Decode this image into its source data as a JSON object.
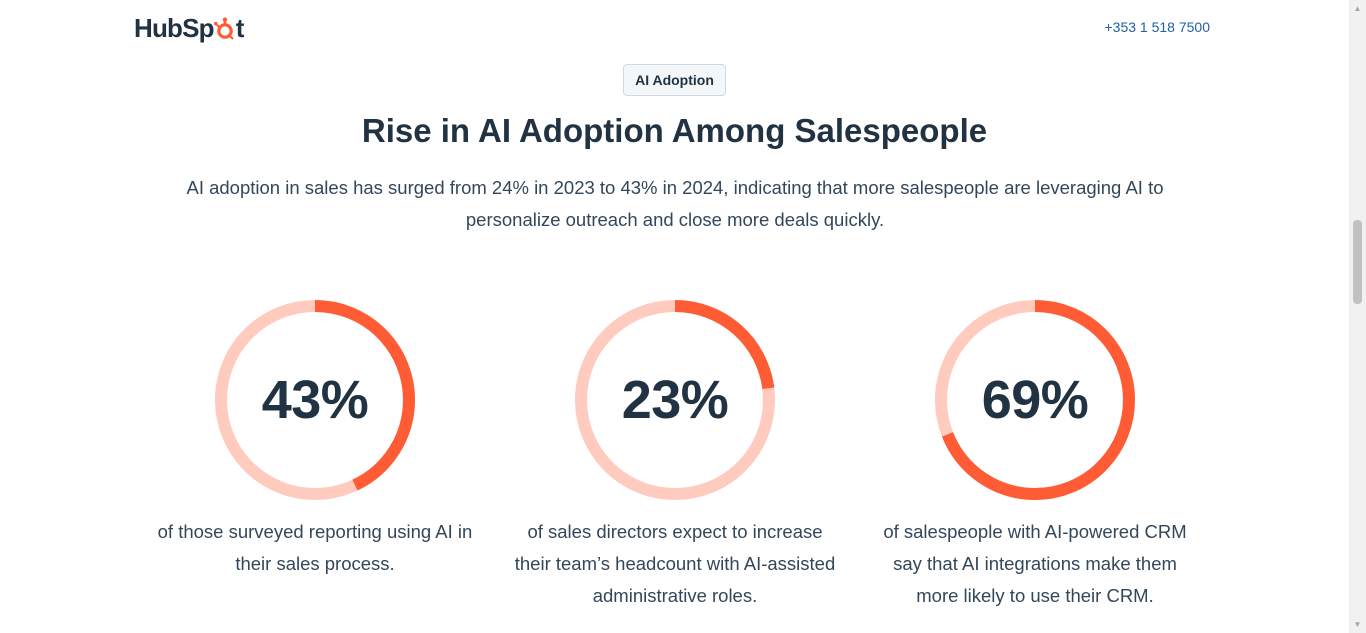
{
  "header": {
    "logo_text_before": "HubSp",
    "logo_text_after": "t",
    "logo_icon": "sprocket-icon",
    "phone": "+353 1 518 7500"
  },
  "section": {
    "eyebrow": "AI Adoption",
    "title": "Rise in AI Adoption Among Salespeople",
    "intro": "AI adoption in sales has surged from 24% in 2023 to 43% in 2024, indicating that more salespeople are leveraging AI to personalize outreach and close more deals quickly."
  },
  "colors": {
    "accent": "#ff5c35",
    "track": "#ffcbbe",
    "heading": "#213343",
    "body": "#33475b",
    "link": "#1f5fa8"
  },
  "stats": [
    {
      "value": "43%",
      "percent": 43,
      "description": "of those surveyed reporting using AI in their sales process."
    },
    {
      "value": "23%",
      "percent": 23,
      "description": "of sales directors expect to increase their team’s headcount with AI-assisted administrative roles."
    },
    {
      "value": "69%",
      "percent": 69,
      "description": "of salespeople with AI-powered CRM say that AI integrations make them more likely to use their CRM."
    }
  ]
}
